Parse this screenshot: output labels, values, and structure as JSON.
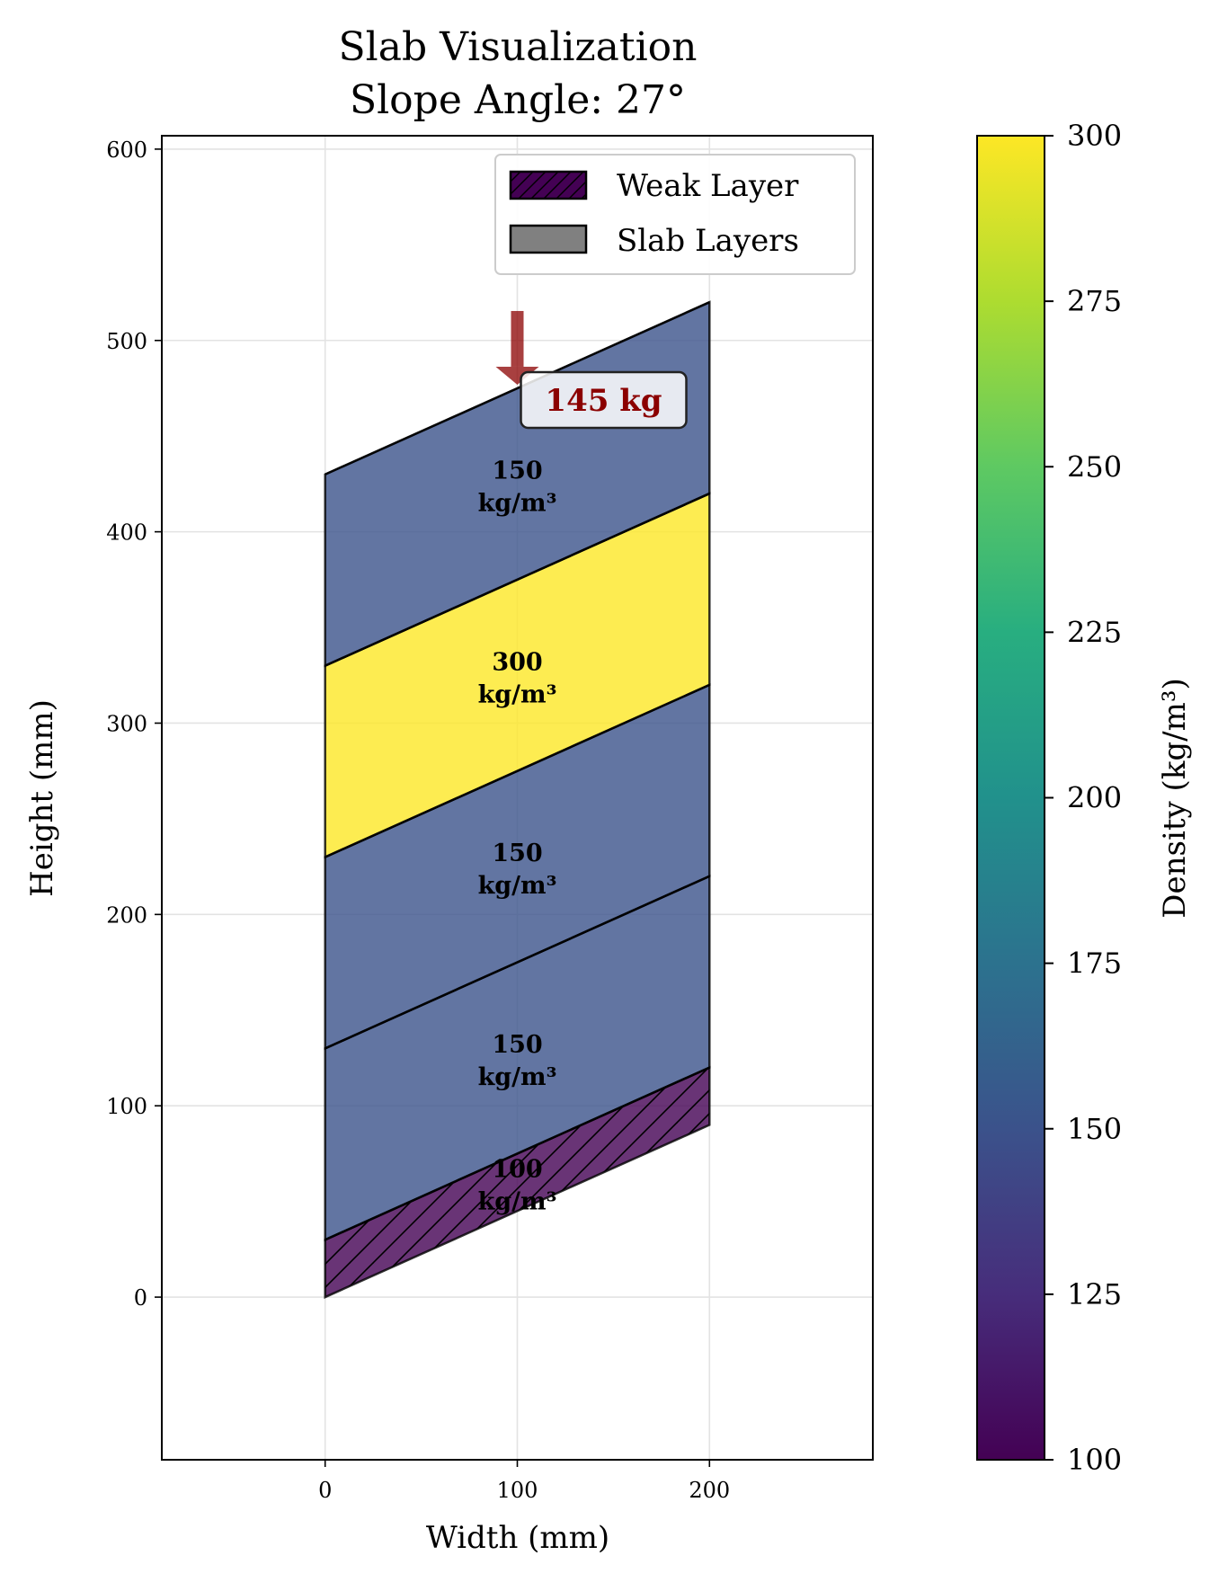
{
  "chart_data": {
    "type": "area",
    "title": "Slab Visualization",
    "subtitle": "Slope Angle: 27°",
    "xlabel": "Width (mm)",
    "ylabel": "Height (mm)",
    "xlim": [
      -85,
      285
    ],
    "ylim": [
      -85,
      607
    ],
    "x_ticks": [
      0,
      100,
      200
    ],
    "y_ticks": [
      0,
      100,
      200,
      300,
      400,
      500,
      600
    ],
    "grid": true,
    "slope_angle_deg": 27,
    "slab_width": 200,
    "layers": [
      {
        "bottom": 0,
        "top": 30,
        "rise": 90,
        "density": 100,
        "label_line1": "100",
        "label_line2": "kg/m³",
        "weak": true
      },
      {
        "bottom": 30,
        "top": 130,
        "rise": 90,
        "density": 150,
        "label_line1": "150",
        "label_line2": "kg/m³",
        "weak": false
      },
      {
        "bottom": 130,
        "top": 230,
        "rise": 90,
        "density": 150,
        "label_line1": "150",
        "label_line2": "kg/m³",
        "weak": false
      },
      {
        "bottom": 230,
        "top": 330,
        "rise": 90,
        "density": 300,
        "label_line1": "300",
        "label_line2": "kg/m³",
        "weak": false
      },
      {
        "bottom": 330,
        "top": 430,
        "rise": 90,
        "density": 150,
        "label_line1": "150",
        "label_line2": "kg/m³",
        "weak": false
      }
    ],
    "load": {
      "text": "145 kg",
      "x": 100,
      "color": "#8b0000"
    },
    "legend": {
      "placement": "upper right",
      "entries": [
        {
          "label": "Weak Layer",
          "color": "#440154",
          "hatch": true
        },
        {
          "label": "Slab Layers",
          "color": "#808080",
          "hatch": false
        }
      ]
    },
    "colorbar": {
      "label": "Density (kg/m³)",
      "min": 100,
      "max": 300,
      "ticks": [
        100,
        125,
        150,
        175,
        200,
        225,
        250,
        275,
        300
      ],
      "colormap": "viridis"
    }
  }
}
